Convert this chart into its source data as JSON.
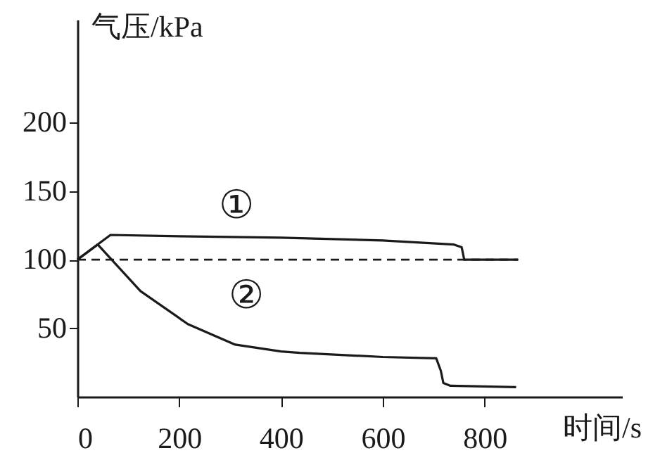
{
  "chart_data": {
    "type": "line",
    "xlabel": "时间/s",
    "ylabel": "气压/kPa",
    "xlim": [
      0,
      1070
    ],
    "ylim": [
      0,
      275
    ],
    "xticks": [
      0,
      200,
      400,
      600,
      800
    ],
    "yticks": [
      50,
      100,
      150,
      200
    ],
    "grid": false,
    "line_style": "solid",
    "marker": "none",
    "series": [
      {
        "name": "①",
        "color": "#1a1a1a",
        "x": [
          0,
          65,
          200,
          400,
          600,
          740,
          755,
          760,
          866
        ],
        "values": [
          100,
          118,
          117,
          116,
          114,
          111,
          109,
          100,
          100
        ]
      },
      {
        "name": "②",
        "color": "#1a1a1a",
        "x": [
          0,
          40,
          124,
          217,
          310,
          400,
          437,
          600,
          705,
          714,
          719,
          733,
          862
        ],
        "values": [
          100,
          111,
          77,
          53,
          38,
          33,
          32,
          29,
          28,
          19,
          10,
          8,
          7
        ]
      }
    ],
    "ref_lines": [
      {
        "axis": "y",
        "value": 100,
        "line_style": "dashed",
        "color": "#1a1a1a"
      }
    ]
  }
}
